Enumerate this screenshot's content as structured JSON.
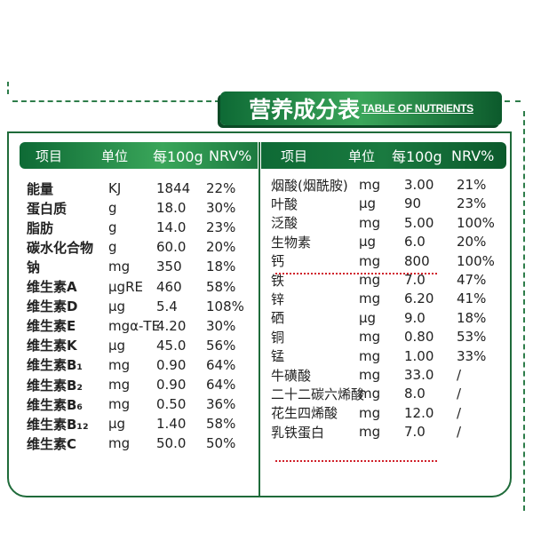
{
  "title": {
    "cn": "营养成分表",
    "en": "TABLE OF NUTRIENTS"
  },
  "headers": {
    "left": [
      "项目",
      "单位",
      "每100g",
      "NRV%"
    ],
    "right": [
      "项目",
      "单位",
      "每100g",
      "NRV%"
    ]
  },
  "left_rows": [
    [
      "能量",
      "KJ",
      "1844",
      "22%"
    ],
    [
      "蛋白质",
      "g",
      "18.0",
      "30%"
    ],
    [
      "脂肪",
      "g",
      "14.0",
      "23%"
    ],
    [
      "碳水化合物",
      "g",
      "60.0",
      "20%"
    ],
    [
      "钠",
      "mg",
      "350",
      "18%"
    ],
    [
      "维生素A",
      "μgRE",
      "460",
      "58%"
    ],
    [
      "维生素D",
      "μg",
      "5.4",
      "108%"
    ],
    [
      "维生素E",
      "mgα-TE",
      "4.20",
      "30%"
    ],
    [
      "维生素K",
      "μg",
      "45.0",
      "56%"
    ],
    [
      "维生素B₁",
      "mg",
      "0.90",
      "64%"
    ],
    [
      "维生素B₂",
      "mg",
      "0.90",
      "64%"
    ],
    [
      "维生素B₆",
      "mg",
      "0.50",
      "36%"
    ],
    [
      "维生素B₁₂",
      "μg",
      "1.40",
      "58%"
    ],
    [
      "维生素C",
      "mg",
      "50.0",
      "50%"
    ]
  ],
  "right_rows": [
    [
      "烟酸(烟酰胺)",
      "mg",
      "3.00",
      "21%"
    ],
    [
      "叶酸",
      "μg",
      "90",
      "23%"
    ],
    [
      "泛酸",
      "mg",
      "5.00",
      "100%"
    ],
    [
      "生物素",
      "μg",
      "6.0",
      "20%"
    ],
    [
      "钙",
      "mg",
      "800",
      "100%"
    ],
    [
      "铁",
      "mg",
      "7.0",
      "47%"
    ],
    [
      "锌",
      "mg",
      "6.20",
      "41%"
    ],
    [
      "硒",
      "μg",
      "9.0",
      "18%"
    ],
    [
      "铜",
      "mg",
      "0.80",
      "53%"
    ],
    [
      "锰",
      "mg",
      "1.00",
      "33%"
    ],
    [
      "牛磺酸",
      "mg",
      "33.0",
      "/"
    ],
    [
      "二十二碳六烯酸",
      "mg",
      "8.0",
      "/"
    ],
    [
      "花生四烯酸",
      "mg",
      "12.0",
      "/"
    ],
    [
      "乳铁蛋白",
      "mg",
      "7.0",
      "/"
    ]
  ],
  "colors": {
    "brand_green": "#1f6b3a",
    "highlight_red": "#d0202a"
  }
}
